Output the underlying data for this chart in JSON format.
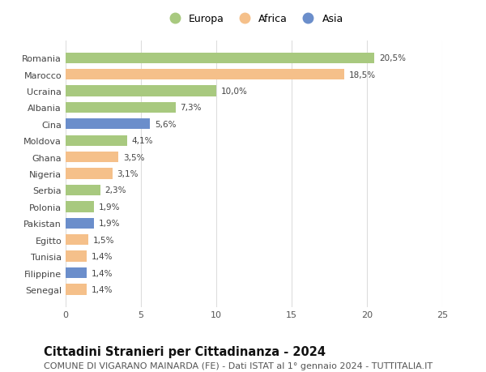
{
  "countries": [
    "Romania",
    "Marocco",
    "Ucraina",
    "Albania",
    "Cina",
    "Moldova",
    "Ghana",
    "Nigeria",
    "Serbia",
    "Polonia",
    "Pakistan",
    "Egitto",
    "Tunisia",
    "Filippine",
    "Senegal"
  ],
  "values": [
    20.5,
    18.5,
    10.0,
    7.3,
    5.6,
    4.1,
    3.5,
    3.1,
    2.3,
    1.9,
    1.9,
    1.5,
    1.4,
    1.4,
    1.4
  ],
  "labels": [
    "20,5%",
    "18,5%",
    "10,0%",
    "7,3%",
    "5,6%",
    "4,1%",
    "3,5%",
    "3,1%",
    "2,3%",
    "1,9%",
    "1,9%",
    "1,5%",
    "1,4%",
    "1,4%",
    "1,4%"
  ],
  "continents": [
    "Europa",
    "Africa",
    "Europa",
    "Europa",
    "Asia",
    "Europa",
    "Africa",
    "Africa",
    "Europa",
    "Europa",
    "Asia",
    "Africa",
    "Africa",
    "Asia",
    "Africa"
  ],
  "colors": {
    "Europa": "#a8c97f",
    "Africa": "#f5c08a",
    "Asia": "#6b8ecb"
  },
  "xlim": [
    0,
    25
  ],
  "xticks": [
    0,
    5,
    10,
    15,
    20,
    25
  ],
  "title": "Cittadini Stranieri per Cittadinanza - 2024",
  "subtitle": "COMUNE DI VIGARANO MAINARDA (FE) - Dati ISTAT al 1° gennaio 2024 - TUTTITALIA.IT",
  "background_color": "#ffffff",
  "grid_color": "#dddddd",
  "bar_height": 0.65,
  "title_fontsize": 10.5,
  "subtitle_fontsize": 8,
  "label_fontsize": 7.5,
  "tick_fontsize": 8,
  "legend_fontsize": 9
}
